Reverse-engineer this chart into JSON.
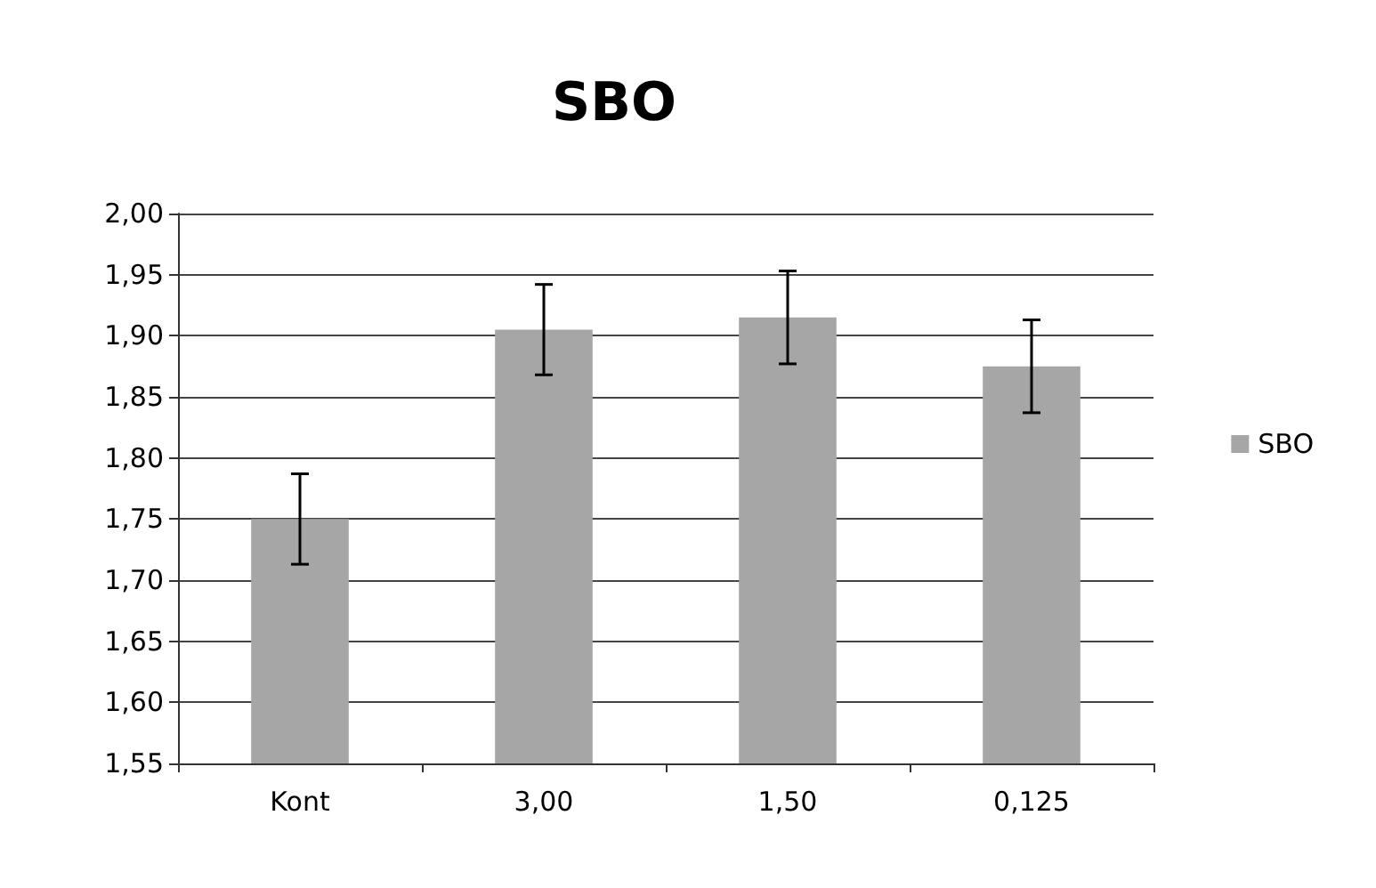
{
  "chart_data": {
    "type": "bar",
    "title": "SBO",
    "categories": [
      "Kont",
      "3,00",
      "1,50",
      "0,125"
    ],
    "series": [
      {
        "name": "SBO",
        "color": "#a6a6a6",
        "values": [
          1.75,
          1.905,
          1.915,
          1.875
        ],
        "errors": [
          0.037,
          0.037,
          0.038,
          0.038
        ]
      }
    ],
    "ylim": [
      1.55,
      2.0
    ],
    "yticks": [
      {
        "value": 1.55,
        "label": "1,55"
      },
      {
        "value": 1.6,
        "label": "1,60"
      },
      {
        "value": 1.65,
        "label": "1,65"
      },
      {
        "value": 1.7,
        "label": "1,70"
      },
      {
        "value": 1.75,
        "label": "1,75"
      },
      {
        "value": 1.8,
        "label": "1,80"
      },
      {
        "value": 1.85,
        "label": "1,85"
      },
      {
        "value": 1.9,
        "label": "1,90"
      },
      {
        "value": 1.95,
        "label": "1,95"
      },
      {
        "value": 2.0,
        "label": "2,00"
      }
    ],
    "grid": "y",
    "legend": "right"
  }
}
